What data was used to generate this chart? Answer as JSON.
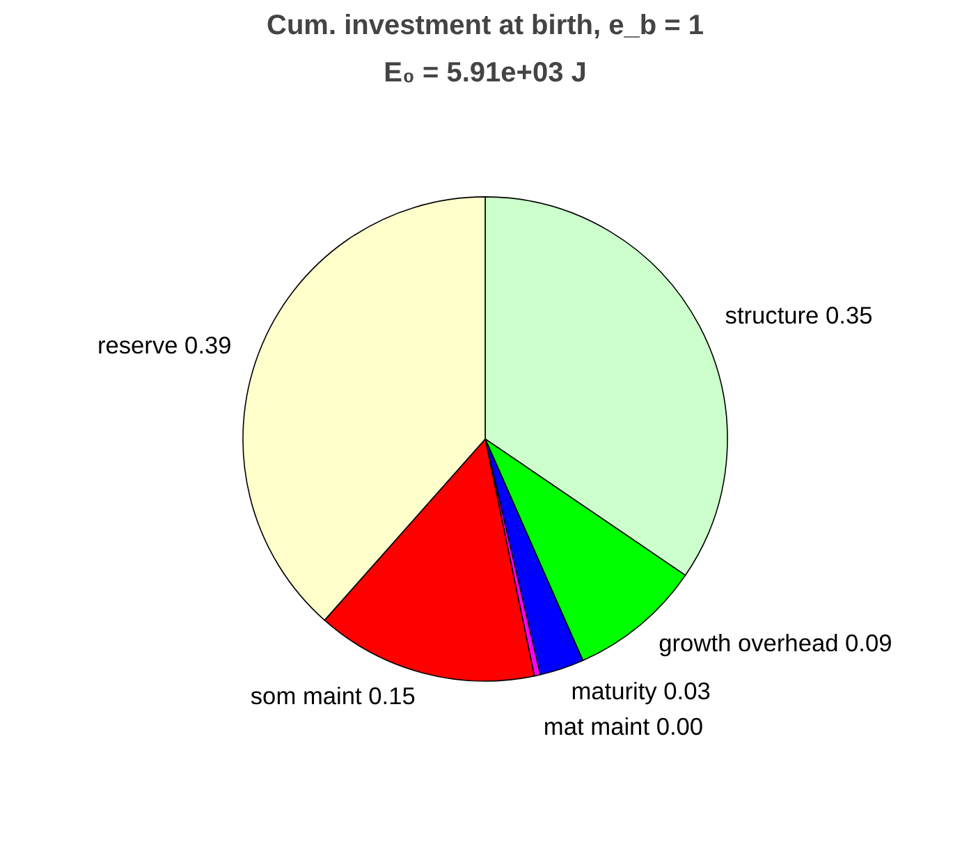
{
  "chart_data": {
    "type": "pie",
    "title": "Cum. investment at birth, e_b = 1",
    "subtitle": "E₀ = 5.91e+03 J",
    "categories": [
      "structure",
      "growth overhead",
      "maturity",
      "mat maint",
      "som maint",
      "reserve"
    ],
    "values": [
      0.35,
      0.09,
      0.03,
      0.004,
      0.15,
      0.39
    ],
    "value_labels": [
      "0.35",
      "0.09",
      "0.03",
      "0.00",
      "0.15",
      "0.39"
    ],
    "colors": [
      "#ccffcc",
      "#00ff00",
      "#0000ff",
      "#ff00ff",
      "#ff0000",
      "#ffffcc"
    ]
  }
}
